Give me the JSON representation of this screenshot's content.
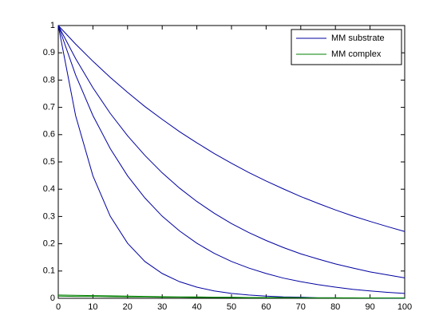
{
  "chart_data": {
    "type": "line",
    "x": [
      0,
      5,
      10,
      15,
      20,
      25,
      30,
      35,
      40,
      45,
      50,
      55,
      60,
      65,
      70,
      75,
      80,
      85,
      90,
      95,
      100
    ],
    "series": [
      {
        "name": "MM substrate",
        "color": "#0000a0",
        "curves": [
          [
            1,
            0.932,
            0.869,
            0.81,
            0.755,
            0.703,
            0.656,
            0.611,
            0.57,
            0.531,
            0.495,
            0.461,
            0.43,
            0.401,
            0.373,
            0.348,
            0.324,
            0.302,
            0.282,
            0.263,
            0.245
          ],
          [
            1,
            0.879,
            0.772,
            0.678,
            0.596,
            0.524,
            0.46,
            0.404,
            0.355,
            0.312,
            0.274,
            0.241,
            0.212,
            0.186,
            0.163,
            0.144,
            0.126,
            0.111,
            0.097,
            0.086,
            0.075
          ],
          [
            1,
            0.819,
            0.67,
            0.549,
            0.449,
            0.368,
            0.301,
            0.247,
            0.202,
            0.165,
            0.135,
            0.111,
            0.091,
            0.074,
            0.061,
            0.05,
            0.041,
            0.033,
            0.027,
            0.022,
            0.018
          ],
          [
            1,
            0.67,
            0.449,
            0.301,
            0.202,
            0.135,
            0.091,
            0.061,
            0.041,
            0.027,
            0.018,
            0.012,
            0.008,
            0.005,
            0.004,
            0.002,
            0.002,
            0.001,
            0.001,
            0,
            0
          ]
        ]
      },
      {
        "name": "MM complex",
        "color": "#008000",
        "curves": [
          [
            0.012,
            0.011,
            0.01,
            0.009,
            0.008,
            0.007,
            0.006,
            0.005,
            0.005,
            0.004,
            0.004,
            0.003,
            0.003,
            0.003,
            0.002,
            0.002,
            0.002,
            0.002,
            0.001,
            0.001,
            0.001
          ],
          [
            0.008,
            0.007,
            0.007,
            0.006,
            0.005,
            0.005,
            0.004,
            0.004,
            0.003,
            0.003,
            0.003,
            0.002,
            0.002,
            0.002,
            0.002,
            0.001,
            0.001,
            0.001,
            0.001,
            0.001,
            0.001
          ]
        ]
      }
    ],
    "xlim": [
      0,
      100
    ],
    "xticks": [
      0,
      10,
      20,
      30,
      40,
      50,
      60,
      70,
      80,
      90,
      100
    ],
    "ylim": [
      0,
      1
    ],
    "yticks": [
      0,
      0.1,
      0.2,
      0.3,
      0.4,
      0.5,
      0.6,
      0.7,
      0.8,
      0.9,
      1
    ],
    "grid": false,
    "legend": "top-right"
  }
}
